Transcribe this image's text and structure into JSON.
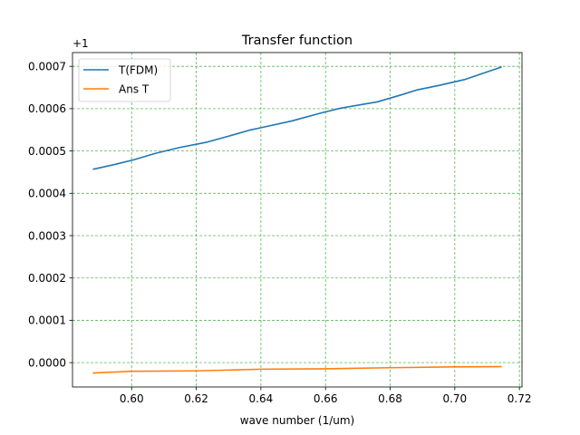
{
  "chart_data": {
    "type": "line",
    "title": "Transfer function",
    "xlabel": "wave number (1/um)",
    "ylabel": "",
    "y_offset_label": "+1",
    "xlim": [
      0.5817,
      0.7208
    ],
    "ylim": [
      -5.75e-05,
      0.0007325
    ],
    "x_ticks": [
      0.6,
      0.62,
      0.64,
      0.66,
      0.68,
      0.7,
      0.72
    ],
    "x_tick_labels": [
      "0.60",
      "0.62",
      "0.64",
      "0.66",
      "0.68",
      "0.70",
      "0.72"
    ],
    "y_ticks": [
      0.0,
      0.0001,
      0.0002,
      0.0003,
      0.0004,
      0.0005,
      0.0006,
      0.0007
    ],
    "y_tick_labels": [
      "0.0000",
      "0.0001",
      "0.0002",
      "0.0003",
      "0.0004",
      "0.0005",
      "0.0006",
      "0.0007"
    ],
    "grid": true,
    "grid_color": "#5cb85c",
    "legend_position": "upper-left",
    "series": [
      {
        "name": "T(FDM)",
        "color": "#1f77b4",
        "x": [
          0.5882,
          0.5947,
          0.6006,
          0.6072,
          0.6147,
          0.6234,
          0.63,
          0.6364,
          0.6412,
          0.6496,
          0.6592,
          0.6646,
          0.676,
          0.6832,
          0.6882,
          0.6952,
          0.7032,
          0.7143
        ],
        "y": [
          0.000457,
          0.000468,
          0.000479,
          0.000494,
          0.000508,
          0.000521,
          0.000535,
          0.000549,
          0.000557,
          0.000571,
          0.000591,
          0.000601,
          0.000616,
          0.000632,
          0.000644,
          0.000655,
          0.000669,
          0.000698
        ]
      },
      {
        "name": "Ans T",
        "color": "#ff7f0e",
        "x": [
          0.5882,
          0.6,
          0.62,
          0.64,
          0.66,
          0.68,
          0.7,
          0.7143
        ],
        "y": [
          -2.45e-05,
          -2.05e-05,
          -1.95e-05,
          -1.55e-05,
          -1.45e-05,
          -1.2e-05,
          -1e-05,
          -9.5e-06
        ]
      }
    ]
  }
}
